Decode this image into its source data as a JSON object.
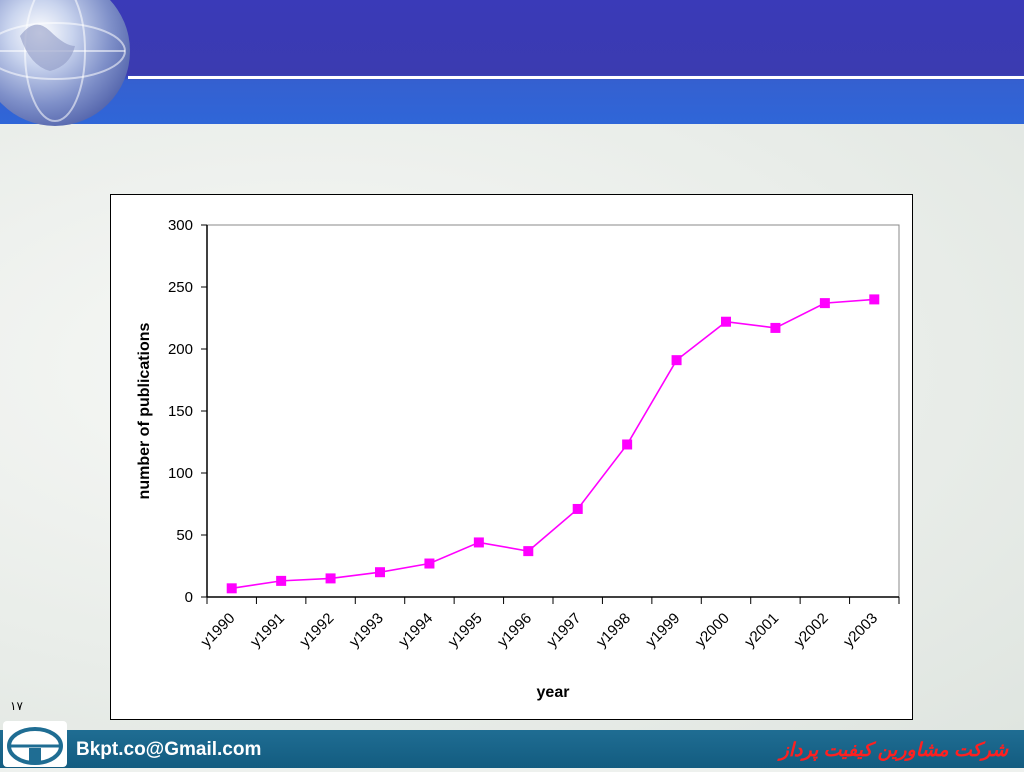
{
  "slide": {
    "page_number": "۱۷",
    "footer_email": "Bkpt.co@Gmail.com",
    "footer_company": "شرکت مشاورین کیفیت پرداز"
  },
  "colors": {
    "header": "#3a3ab8",
    "footer": "#135c80",
    "series": "#ff00ff",
    "company_text": "#ff2020"
  },
  "icons": {
    "header": "globe-icon",
    "footer": "company-logo-icon"
  },
  "chart_data": {
    "type": "line",
    "title": "",
    "xlabel": "year",
    "ylabel": "number of publications",
    "categories": [
      "y1990",
      "y1991",
      "y1992",
      "y1993",
      "y1994",
      "y1995",
      "y1996",
      "y1997",
      "y1998",
      "y1999",
      "y2000",
      "y2001",
      "y2002",
      "y2003"
    ],
    "series": [
      {
        "values": [
          7,
          13,
          15,
          20,
          27,
          44,
          37,
          71,
          123,
          191,
          222,
          217,
          237,
          240
        ],
        "marker": "square"
      }
    ],
    "y_ticks": [
      0,
      50,
      100,
      150,
      200,
      250,
      300
    ],
    "ylim": [
      0,
      300
    ],
    "grid": false,
    "legend": "none"
  }
}
